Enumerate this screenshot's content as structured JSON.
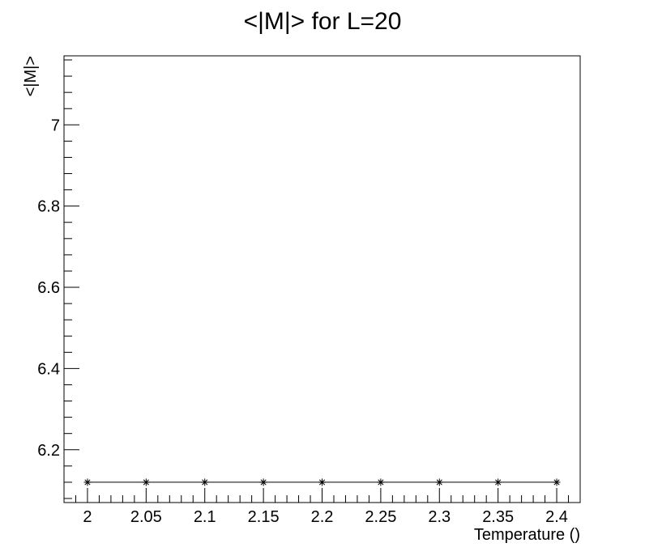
{
  "chart_data": {
    "type": "line",
    "title": "<|M|> for L=20",
    "xlabel": "Temperature ()",
    "ylabel": "<|M|>",
    "xlim": [
      1.98,
      2.42
    ],
    "ylim": [
      6.07,
      7.17
    ],
    "x_ticks": [
      2,
      2.05,
      2.1,
      2.15,
      2.2,
      2.25,
      2.3,
      2.35,
      2.4
    ],
    "x_tick_labels": [
      "2",
      "2.05",
      "2.1",
      "2.15",
      "2.2",
      "2.25",
      "2.3",
      "2.35",
      "2.4"
    ],
    "y_ticks": [
      6.2,
      6.4,
      6.6,
      6.8,
      7
    ],
    "y_tick_labels": [
      "6.2",
      "6.4",
      "6.6",
      "6.8",
      "7"
    ],
    "series": [
      {
        "x": [
          2,
          2.05,
          2.1,
          2.15,
          2.2,
          2.25,
          2.3,
          2.35,
          2.4
        ],
        "y": [
          6.12,
          6.12,
          6.12,
          6.12,
          6.12,
          6.12,
          6.12,
          6.12,
          6.12
        ],
        "marker": "asterisk",
        "color": "#000000"
      }
    ],
    "grid": false,
    "legend": "none"
  }
}
